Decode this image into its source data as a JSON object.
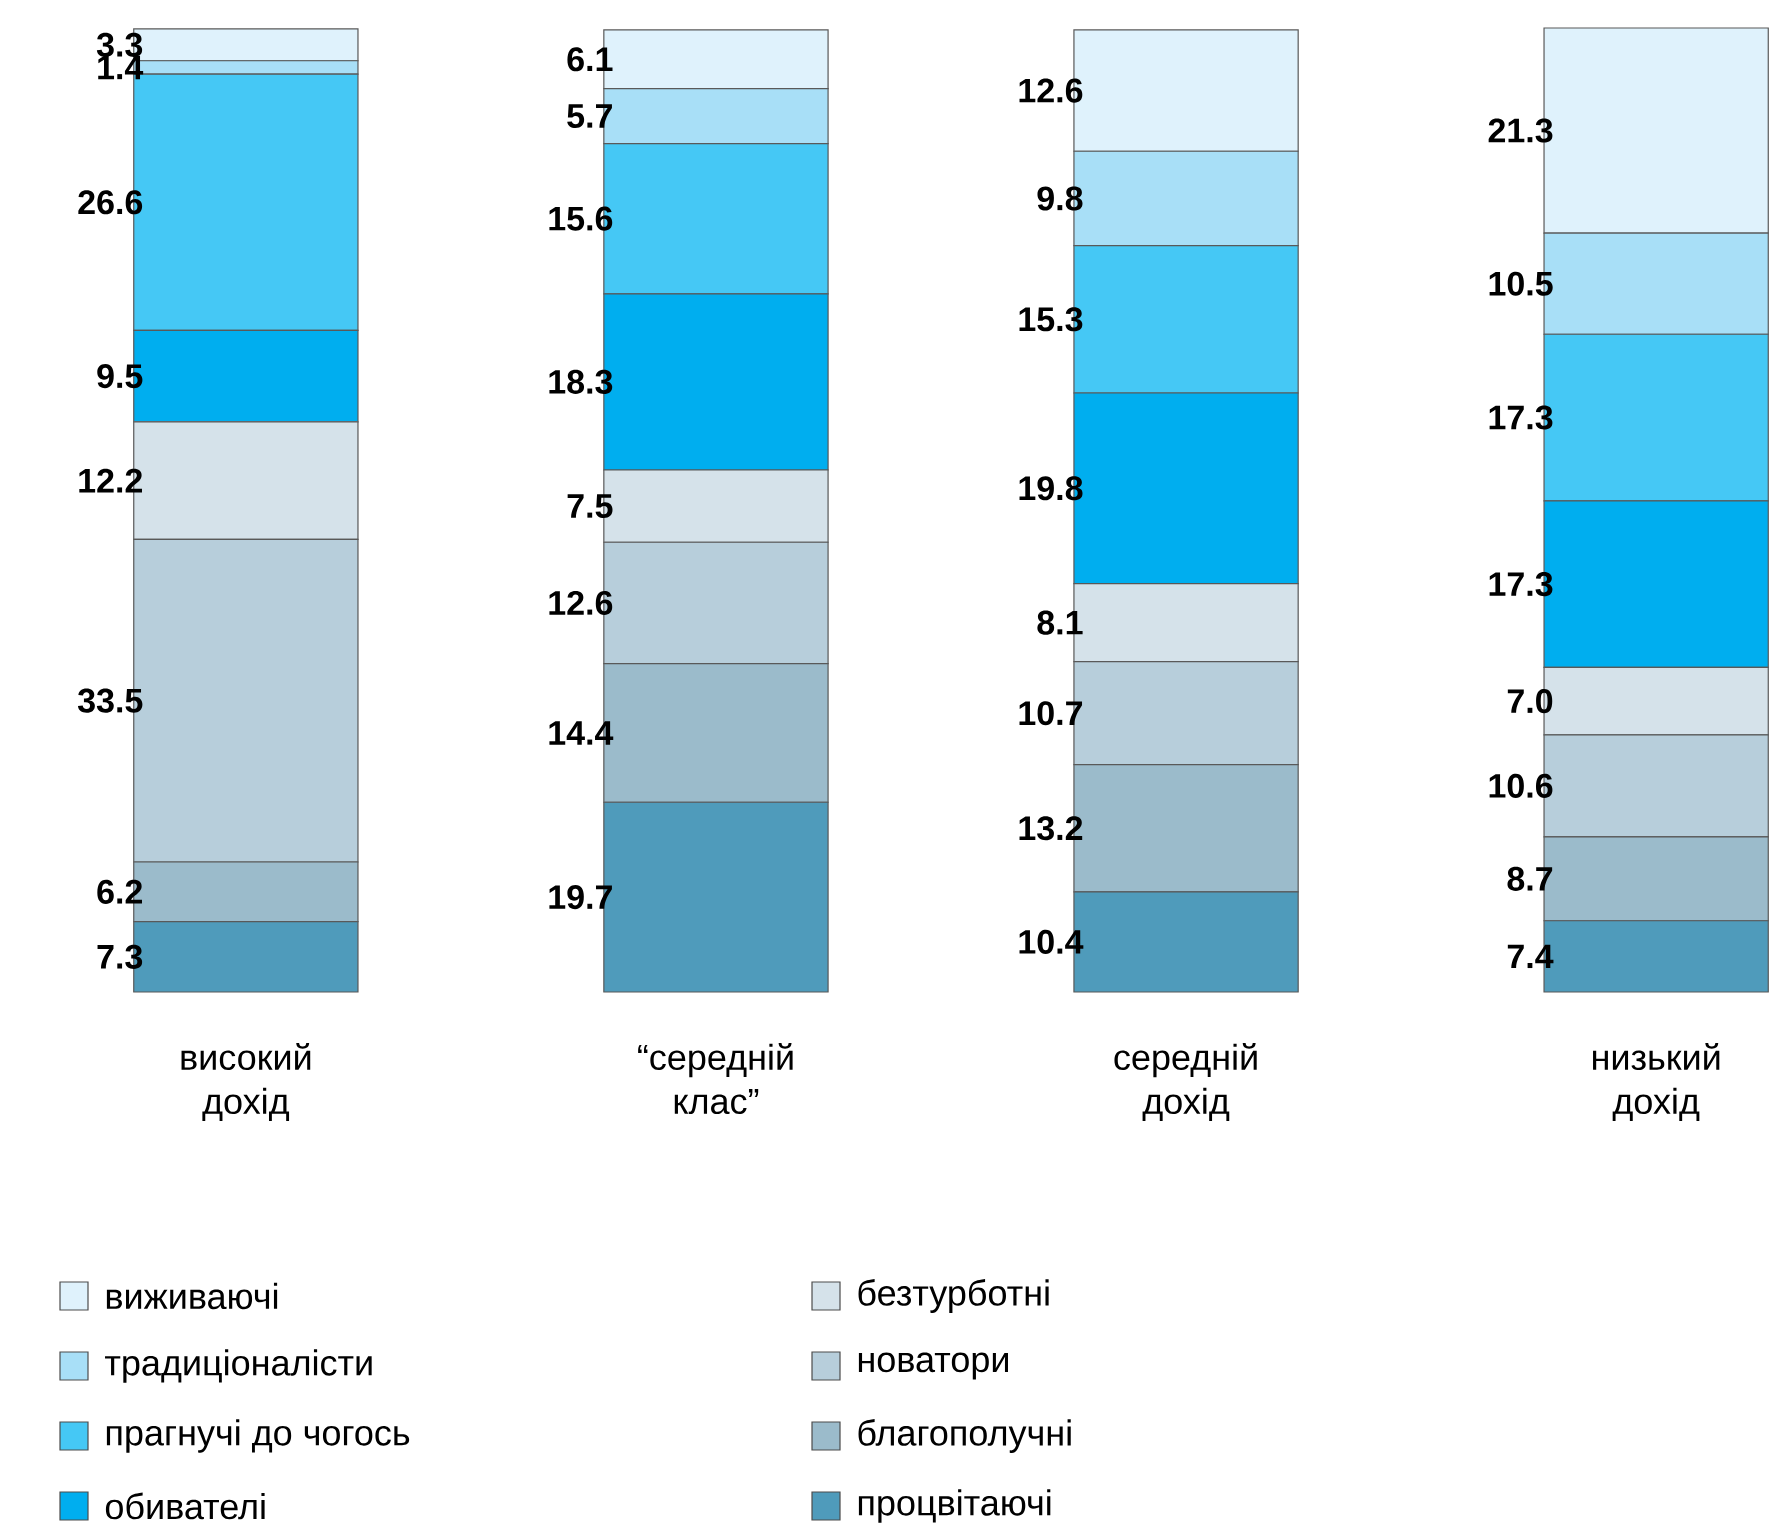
{
  "chart_data": {
    "type": "bar",
    "stacked": true,
    "legend": "bottom",
    "categories": [
      "високий дохід",
      "“середній клас”",
      "середній дохід",
      "низький дохід"
    ],
    "series": [
      {
        "name": "процвітаючі",
        "color": "#4f9bbb",
        "values": [
          7.3,
          19.7,
          10.4,
          7.4
        ],
        "value_labels": [
          "7.3",
          "19.7",
          "10.4",
          "7.4"
        ]
      },
      {
        "name": "благополучні",
        "color": "#9bbbcb",
        "values": [
          6.2,
          14.4,
          13.2,
          8.7
        ],
        "value_labels": [
          "6.2",
          "14.4",
          "13.2",
          "8.7"
        ]
      },
      {
        "name": "новатори",
        "color": "#b7cedb",
        "values": [
          33.5,
          12.6,
          10.7,
          10.6
        ],
        "value_labels": [
          "33.5",
          "12.6",
          "10.7",
          "10.6"
        ]
      },
      {
        "name": "безтурботні",
        "color": "#d5e2ea",
        "values": [
          12.2,
          7.5,
          8.1,
          7.0
        ],
        "value_labels": [
          "12.2",
          "7.5",
          "8.1",
          "7.0"
        ]
      },
      {
        "name": "обивателі",
        "color": "#00aeef",
        "values": [
          9.5,
          18.3,
          19.8,
          17.3
        ],
        "value_labels": [
          "9.5",
          "18.3",
          "19.8",
          "17.3"
        ]
      },
      {
        "name": "прагнучі до чогось",
        "color": "#45c8f5",
        "values": [
          26.6,
          15.6,
          15.3,
          17.3
        ],
        "value_labels": [
          "26.6",
          "15.6",
          "15.3",
          "17.3"
        ]
      },
      {
        "name": "традиціоналісти",
        "color": "#a8dff7",
        "values": [
          1.4,
          5.7,
          9.8,
          10.5
        ],
        "value_labels": [
          "1.4",
          "5.7",
          "9.8",
          "10.5"
        ]
      },
      {
        "name": "виживаючі",
        "color": "#dff2fc",
        "values": [
          3.3,
          6.1,
          12.6,
          21.3
        ],
        "value_labels": [
          "3.3",
          "6.1",
          "12.6",
          "21.3"
        ]
      }
    ]
  }
}
